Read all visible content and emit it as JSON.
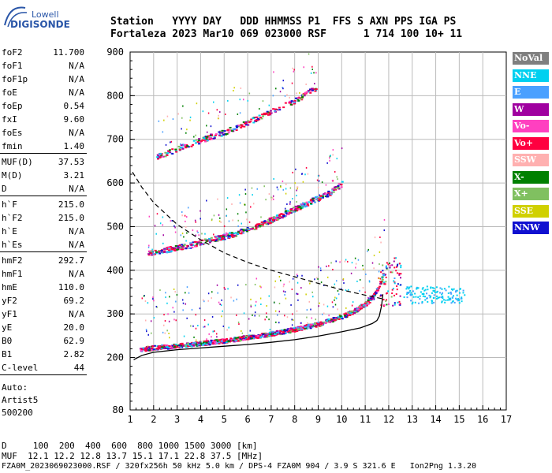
{
  "logo": {
    "line1": "Lowell",
    "line2": "DIGISONDE"
  },
  "header": {
    "line1": "Station   YYYY DAY   DDD HHMMSS P1  FFS S AXN PPS IGA PS",
    "line2": "Fortaleza 2023 Mar10 069 023000 RSF      1 714 100 10+ 11"
  },
  "params": [
    {
      "key": "foF2",
      "value": "11.700"
    },
    {
      "key": "foF1",
      "value": "N/A"
    },
    {
      "key": "foF1p",
      "value": "N/A"
    },
    {
      "key": "foE",
      "value": "N/A"
    },
    {
      "key": "foEp",
      "value": "0.54"
    },
    {
      "key": "fxI",
      "value": "9.60"
    },
    {
      "key": "foEs",
      "value": "N/A"
    },
    {
      "key": "fmin",
      "value": "1.40"
    },
    {
      "key": "MUF(D)",
      "value": "37.53"
    },
    {
      "key": "M(D)",
      "value": "3.21"
    },
    {
      "key": "D",
      "value": "N/A"
    },
    {
      "key": "h`F",
      "value": "215.0"
    },
    {
      "key": "h`F2",
      "value": "215.0"
    },
    {
      "key": "h`E",
      "value": "N/A"
    },
    {
      "key": "h`Es",
      "value": "N/A"
    },
    {
      "key": "hmF2",
      "value": "292.7"
    },
    {
      "key": "hmF1",
      "value": "N/A"
    },
    {
      "key": "hmE",
      "value": "110.0"
    },
    {
      "key": "yF2",
      "value": "69.2"
    },
    {
      "key": "yF1",
      "value": "N/A"
    },
    {
      "key": "yE",
      "value": "20.0"
    },
    {
      "key": "B0",
      "value": "62.9"
    },
    {
      "key": "B1",
      "value": "2.82"
    },
    {
      "key": "C-level",
      "value": "44"
    }
  ],
  "auto": {
    "line1": "Auto:",
    "line2": "Artist5",
    "line3": "500200"
  },
  "legend": [
    {
      "label": "NoVal",
      "color": "#7f7f7f"
    },
    {
      "label": "NNE",
      "color": "#00d0f0"
    },
    {
      "label": "E",
      "color": "#4aa0ff"
    },
    {
      "label": "W",
      "color": "#a000a0"
    },
    {
      "label": "Vo-",
      "color": "#ff40c0"
    },
    {
      "label": "Vo+",
      "color": "#ff0040"
    },
    {
      "label": "SSW",
      "color": "#ffb0b0"
    },
    {
      "label": "X-",
      "color": "#008000"
    },
    {
      "label": "X+",
      "color": "#80c060"
    },
    {
      "label": "SSE",
      "color": "#d0d000"
    },
    {
      "label": "NNW",
      "color": "#1010d0"
    }
  ],
  "footer": {
    "line1": "D     100  200  400  600  800 1000 1500 3000 [km]",
    "line2": "MUF  12.1 12.2 12.8 13.7 15.1 17.1 22.8 37.5 [MHz]",
    "line3": "FZA0M_2023069023000.RSF / 320fx256h 50 kHz 5.0 km / DPS-4 FZA0M 904 / 3.9 S 321.6 E   Ion2Png 1.3.20"
  },
  "chart_data": {
    "type": "scatter",
    "xlim": [
      1,
      17
    ],
    "ylim": [
      80,
      900
    ],
    "x_ticks": [
      1,
      2,
      3,
      4,
      5,
      6,
      7,
      8,
      9,
      10,
      11,
      12,
      13,
      14,
      15,
      16,
      17
    ],
    "y_ticks": [
      80,
      200,
      300,
      400,
      500,
      600,
      700,
      800,
      900
    ],
    "grid": true,
    "traces": [
      {
        "name": "O-trace",
        "points": [
          [
            1.4,
            220
          ],
          [
            2,
            224
          ],
          [
            3,
            228
          ],
          [
            4,
            234
          ],
          [
            5,
            240
          ],
          [
            6,
            248
          ],
          [
            7,
            256
          ],
          [
            8,
            266
          ],
          [
            9,
            278
          ],
          [
            10,
            295
          ],
          [
            10.5,
            308
          ],
          [
            11,
            325
          ],
          [
            11.3,
            340
          ],
          [
            11.6,
            370
          ],
          [
            11.8,
            400
          ]
        ]
      },
      {
        "name": "2-hop",
        "points": [
          [
            1.7,
            440
          ],
          [
            2.5,
            448
          ],
          [
            3.5,
            458
          ],
          [
            4.5,
            472
          ],
          [
            5.5,
            486
          ],
          [
            6.5,
            505
          ],
          [
            7.5,
            530
          ],
          [
            8.5,
            555
          ],
          [
            9.5,
            580
          ],
          [
            10,
            600
          ]
        ]
      },
      {
        "name": "3-hop",
        "points": [
          [
            2.1,
            660
          ],
          [
            3,
            680
          ],
          [
            4,
            700
          ],
          [
            5,
            718
          ],
          [
            6,
            740
          ],
          [
            7,
            765
          ],
          [
            8,
            790
          ],
          [
            8.9,
            820
          ]
        ]
      }
    ],
    "profile_curve": [
      [
        1.15,
        195
      ],
      [
        1.5,
        205
      ],
      [
        2,
        212
      ],
      [
        3,
        218
      ],
      [
        4,
        222
      ],
      [
        5,
        226
      ],
      [
        6,
        230
      ],
      [
        7,
        235
      ],
      [
        8,
        241
      ],
      [
        9,
        249
      ],
      [
        10,
        259
      ],
      [
        10.8,
        268
      ],
      [
        11.3,
        278
      ],
      [
        11.5,
        285
      ],
      [
        11.6,
        295
      ],
      [
        11.7,
        320
      ],
      [
        11.75,
        345
      ]
    ],
    "muf_curve": [
      [
        1.1,
        625
      ],
      [
        1.5,
        590
      ],
      [
        2,
        555
      ],
      [
        3,
        505
      ],
      [
        4,
        470
      ],
      [
        5,
        440
      ],
      [
        6,
        418
      ],
      [
        7,
        400
      ],
      [
        8,
        385
      ],
      [
        9,
        370
      ],
      [
        10,
        355
      ],
      [
        11,
        343
      ],
      [
        11.7,
        335
      ]
    ]
  }
}
